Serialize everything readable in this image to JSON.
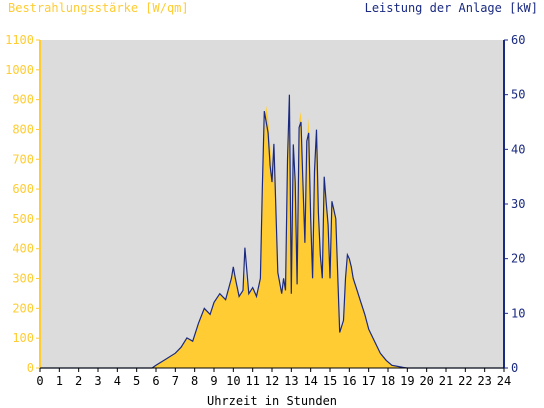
{
  "colors": {
    "plot_bg": "#dcdcdc",
    "irradiance": "#ffcc33",
    "power": "#1a2a80",
    "left_axis": "#ffcc33",
    "right_axis": "#1a2a80"
  },
  "chart_data": {
    "type": "area",
    "left_axis_title": "Bestrahlungsstärke [W/qm]",
    "right_axis_title": "Leistung der Anlage [kW]",
    "xlabel": "Uhrzeit in Stunden",
    "xlim": [
      0,
      24
    ],
    "ylim_left": [
      0,
      1100
    ],
    "ylim_right": [
      0,
      60
    ],
    "x_ticks": [
      "0",
      "1",
      "2",
      "3",
      "4",
      "5",
      "6",
      "7",
      "8",
      "9",
      "10",
      "11",
      "12",
      "13",
      "14",
      "15",
      "16",
      "17",
      "18",
      "19",
      "20",
      "21",
      "22",
      "23",
      "24"
    ],
    "y_ticks_left": [
      "0",
      "100",
      "200",
      "300",
      "400",
      "500",
      "600",
      "700",
      "800",
      "900",
      "1000",
      "1100"
    ],
    "y_ticks_right": [
      "0",
      "10",
      "20",
      "30",
      "40",
      "50",
      "60"
    ],
    "series": [
      {
        "name": "Bestrahlungsstärke",
        "axis": "left",
        "x": [
          0,
          5.8,
          6,
          6.5,
          7,
          7.3,
          7.6,
          7.9,
          8.2,
          8.5,
          8.8,
          9,
          9.3,
          9.6,
          9.9,
          10,
          10.1,
          10.3,
          10.5,
          10.6,
          10.8,
          11,
          11.2,
          11.4,
          11.5,
          11.6,
          11.7,
          11.8,
          11.9,
          12,
          12.1,
          12.3,
          12.5,
          12.6,
          12.7,
          12.8,
          12.9,
          13,
          13.1,
          13.2,
          13.3,
          13.4,
          13.5,
          13.6,
          13.7,
          13.8,
          13.9,
          14,
          14.1,
          14.2,
          14.3,
          14.4,
          14.5,
          14.6,
          14.7,
          14.8,
          14.9,
          15,
          15.1,
          15.2,
          15.3,
          15.5,
          15.7,
          15.8,
          15.9,
          16,
          16.1,
          16.2,
          16.4,
          16.6,
          16.8,
          17,
          17.3,
          17.6,
          17.9,
          18.2,
          18.5,
          18.8,
          19,
          19.2,
          24
        ],
        "y": [
          0,
          0,
          10,
          30,
          50,
          70,
          100,
          90,
          150,
          200,
          180,
          220,
          250,
          230,
          300,
          340,
          300,
          240,
          260,
          320,
          250,
          270,
          240,
          300,
          600,
          790,
          880,
          840,
          750,
          680,
          760,
          320,
          250,
          300,
          260,
          700,
          890,
          250,
          750,
          620,
          280,
          830,
          860,
          620,
          420,
          760,
          840,
          500,
          300,
          680,
          800,
          520,
          380,
          300,
          640,
          560,
          480,
          300,
          560,
          530,
          500,
          120,
          160,
          300,
          370,
          360,
          340,
          300,
          260,
          220,
          180,
          130,
          90,
          50,
          25,
          10,
          5,
          2,
          0,
          0,
          0
        ]
      },
      {
        "name": "Leistung der Anlage",
        "axis": "right",
        "x": [
          0,
          5.8,
          6,
          6.5,
          7,
          7.3,
          7.6,
          7.9,
          8.2,
          8.5,
          8.8,
          9,
          9.3,
          9.6,
          9.9,
          10,
          10.1,
          10.3,
          10.5,
          10.6,
          10.8,
          11,
          11.2,
          11.4,
          11.5,
          11.6,
          11.7,
          11.8,
          11.9,
          12,
          12.1,
          12.3,
          12.5,
          12.6,
          12.7,
          12.8,
          12.9,
          13,
          13.1,
          13.2,
          13.3,
          13.4,
          13.5,
          13.6,
          13.7,
          13.8,
          13.9,
          14,
          14.1,
          14.2,
          14.3,
          14.4,
          14.5,
          14.6,
          14.7,
          14.8,
          14.9,
          15,
          15.1,
          15.2,
          15.3,
          15.5,
          15.7,
          15.8,
          15.9,
          16,
          16.1,
          16.2,
          16.4,
          16.6,
          16.8,
          17,
          17.3,
          17.6,
          17.9,
          18.2,
          18.5,
          18.8,
          19,
          19.2,
          24
        ],
        "y": [
          0,
          0,
          0.5,
          1.6,
          2.7,
          3.8,
          5.5,
          4.9,
          8.2,
          10.9,
          9.8,
          12,
          13.6,
          12.5,
          16.4,
          18.5,
          16.4,
          13.1,
          14.2,
          22,
          13.6,
          14.7,
          13.1,
          16.4,
          32.7,
          47,
          45,
          43,
          37,
          34,
          41,
          17.5,
          13.6,
          16.4,
          14.2,
          38,
          50,
          13.6,
          40.9,
          34,
          15.3,
          44,
          45,
          34,
          22.9,
          41.5,
          43,
          27.3,
          16.4,
          36,
          43.6,
          28.4,
          20.7,
          16.4,
          35,
          30.5,
          26.2,
          16.4,
          30.5,
          28.9,
          27.3,
          6.5,
          8.7,
          16.4,
          20.7,
          20,
          18.5,
          16.4,
          14.2,
          12,
          9.8,
          7.1,
          4.9,
          2.7,
          1.4,
          0.5,
          0.3,
          0.1,
          0,
          0,
          0
        ]
      }
    ]
  }
}
